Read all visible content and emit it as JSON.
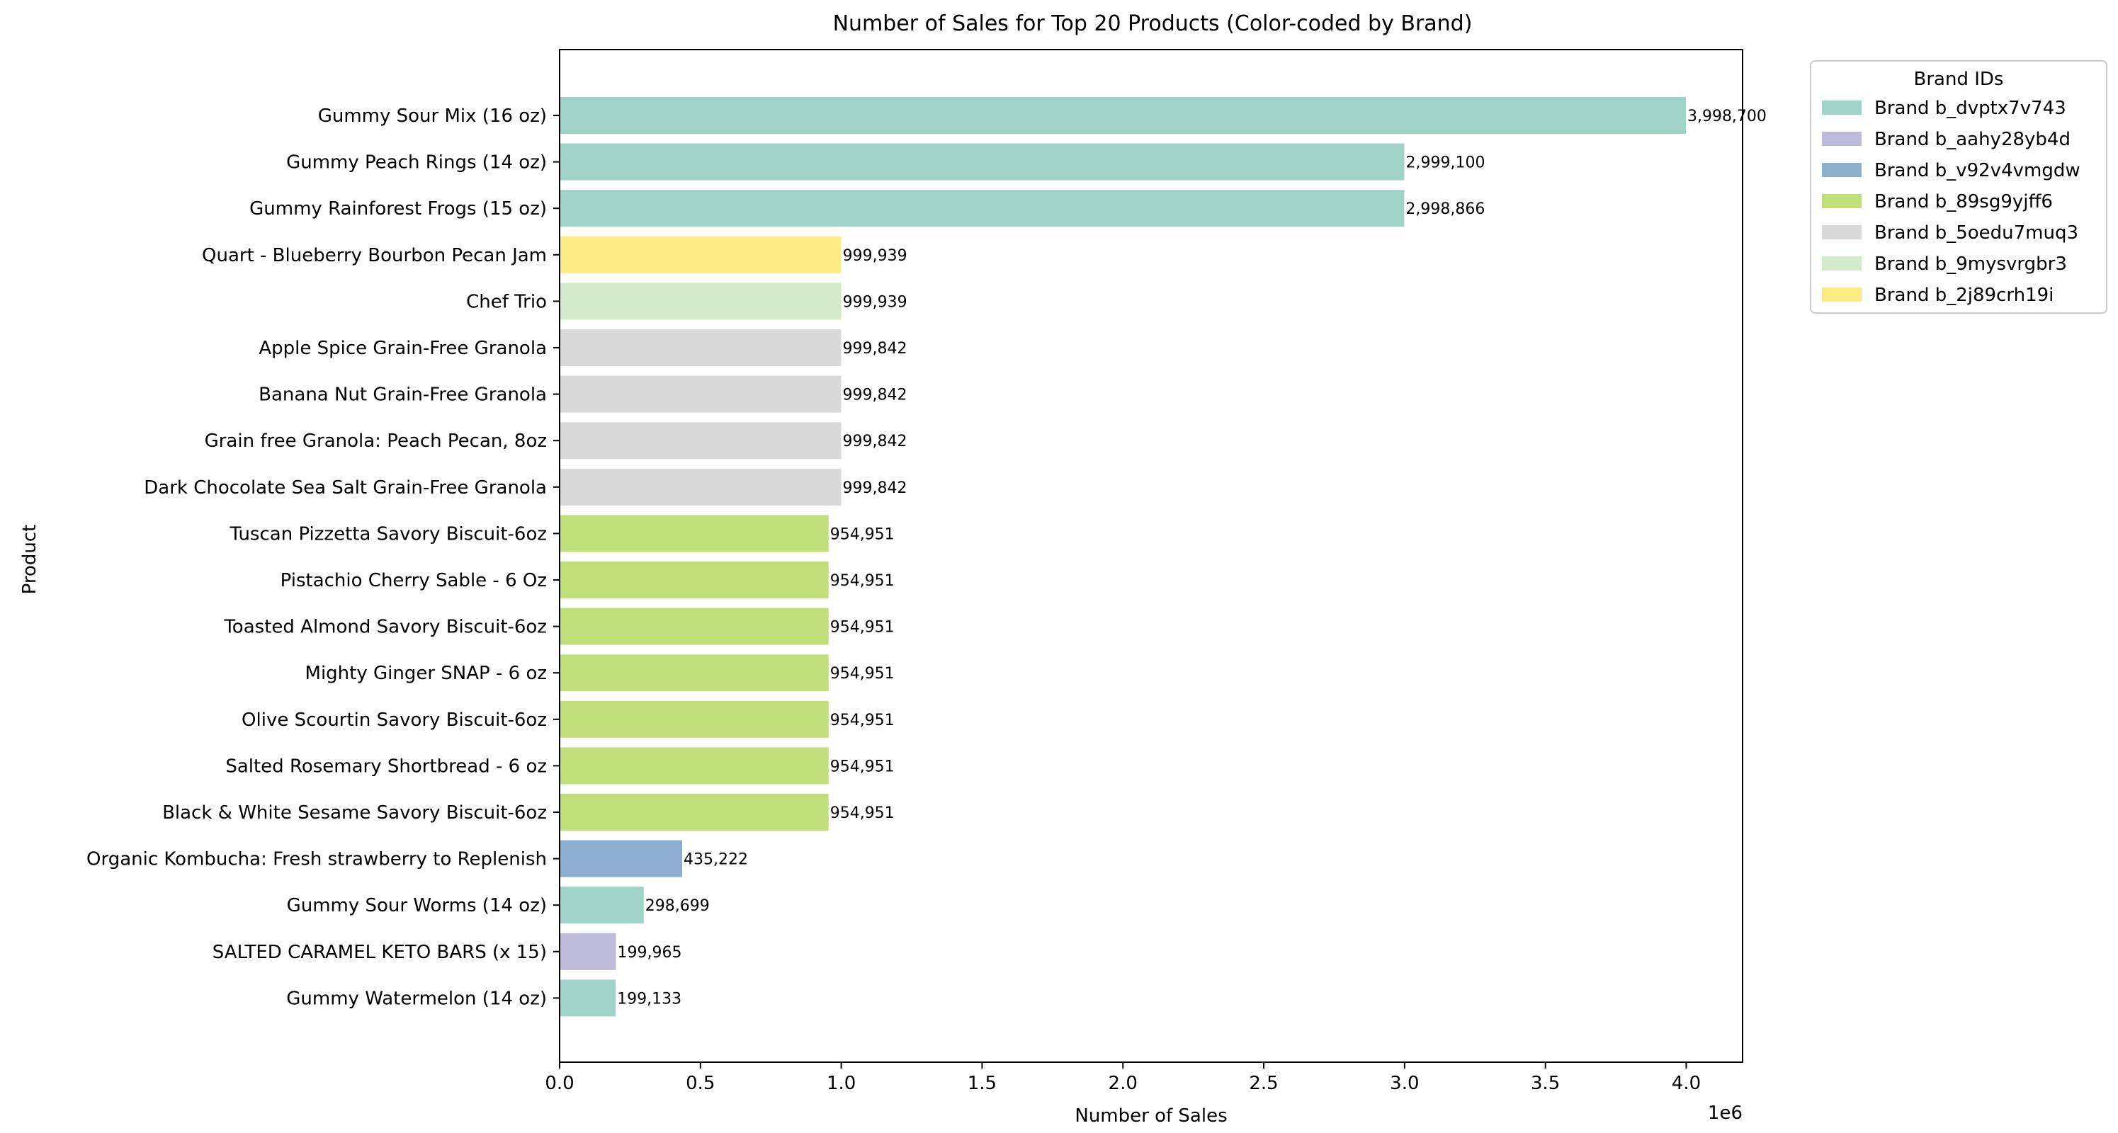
{
  "chart_data": {
    "type": "bar",
    "orientation": "horizontal",
    "title": "Number of Sales for Top 20 Products (Color-coded by Brand)",
    "xlabel": "Number of Sales",
    "ylabel": "Product",
    "offset_text": "1e6",
    "xlim": [
      0,
      4200000
    ],
    "x_ticks": [
      0,
      500000,
      1000000,
      1500000,
      2000000,
      2500000,
      3000000,
      3500000,
      4000000
    ],
    "x_tick_labels": [
      "0.0",
      "0.5",
      "1.0",
      "1.5",
      "2.0",
      "2.5",
      "3.0",
      "3.5",
      "4.0"
    ],
    "grid": false,
    "legend": {
      "title": "Brand IDs",
      "placement": "outside-top-right",
      "entries": [
        {
          "label": "Brand b_dvptx7v743",
          "color": "#9fd3c7"
        },
        {
          "label": "Brand b_aahy28yb4d",
          "color": "#bebada"
        },
        {
          "label": "Brand b_v92v4vmgdw",
          "color": "#8caecf"
        },
        {
          "label": "Brand b_89sg9yjff6",
          "color": "#c0df7a"
        },
        {
          "label": "Brand b_5oedu7muq3",
          "color": "#d9d9d9"
        },
        {
          "label": "Brand b_9mysvrgbr3",
          "color": "#d3ebc9"
        },
        {
          "label": "Brand b_2j89crh19i",
          "color": "#fdec83"
        }
      ]
    },
    "bars": [
      {
        "product": "Gummy Sour Mix (16 oz)",
        "value": 3998700,
        "label": "3,998,700",
        "brand": "Brand b_dvptx7v743"
      },
      {
        "product": "Gummy Peach Rings (14 oz)",
        "value": 2999100,
        "label": "2,999,100",
        "brand": "Brand b_dvptx7v743"
      },
      {
        "product": "Gummy Rainforest Frogs (15 oz)",
        "value": 2998866,
        "label": "2,998,866",
        "brand": "Brand b_dvptx7v743"
      },
      {
        "product": "Quart - Blueberry Bourbon Pecan Jam",
        "value": 999939,
        "label": "999,939",
        "brand": "Brand b_2j89crh19i"
      },
      {
        "product": "Chef Trio",
        "value": 999939,
        "label": "999,939",
        "brand": "Brand b_9mysvrgbr3"
      },
      {
        "product": "Apple Spice Grain-Free Granola",
        "value": 999842,
        "label": "999,842",
        "brand": "Brand b_5oedu7muq3"
      },
      {
        "product": "Banana Nut Grain-Free Granola",
        "value": 999842,
        "label": "999,842",
        "brand": "Brand b_5oedu7muq3"
      },
      {
        "product": "Grain free Granola: Peach Pecan, 8oz",
        "value": 999842,
        "label": "999,842",
        "brand": "Brand b_5oedu7muq3"
      },
      {
        "product": "Dark Chocolate Sea Salt Grain-Free Granola",
        "value": 999842,
        "label": "999,842",
        "brand": "Brand b_5oedu7muq3"
      },
      {
        "product": "Tuscan Pizzetta Savory Biscuit-6oz",
        "value": 954951,
        "label": "954,951",
        "brand": "Brand b_89sg9yjff6"
      },
      {
        "product": "Pistachio Cherry Sable - 6 Oz",
        "value": 954951,
        "label": "954,951",
        "brand": "Brand b_89sg9yjff6"
      },
      {
        "product": "Toasted Almond Savory Biscuit-6oz",
        "value": 954951,
        "label": "954,951",
        "brand": "Brand b_89sg9yjff6"
      },
      {
        "product": "Mighty Ginger SNAP - 6 oz",
        "value": 954951,
        "label": "954,951",
        "brand": "Brand b_89sg9yjff6"
      },
      {
        "product": "Olive Scourtin Savory Biscuit-6oz",
        "value": 954951,
        "label": "954,951",
        "brand": "Brand b_89sg9yjff6"
      },
      {
        "product": "Salted Rosemary Shortbread - 6 oz",
        "value": 954951,
        "label": "954,951",
        "brand": "Brand b_89sg9yjff6"
      },
      {
        "product": "Black & White Sesame Savory Biscuit-6oz",
        "value": 954951,
        "label": "954,951",
        "brand": "Brand b_89sg9yjff6"
      },
      {
        "product": "Organic Kombucha: Fresh strawberry to Replenish",
        "value": 435222,
        "label": "435,222",
        "brand": "Brand b_v92v4vmgdw"
      },
      {
        "product": "Gummy Sour Worms (14 oz)",
        "value": 298699,
        "label": "298,699",
        "brand": "Brand b_dvptx7v743"
      },
      {
        "product": "SALTED CARAMEL KETO BARS (x 15)",
        "value": 199965,
        "label": "199,965",
        "brand": "Brand b_aahy28yb4d"
      },
      {
        "product": "Gummy Watermelon (14 oz)",
        "value": 199133,
        "label": "199,133",
        "brand": "Brand b_dvptx7v743"
      }
    ]
  }
}
